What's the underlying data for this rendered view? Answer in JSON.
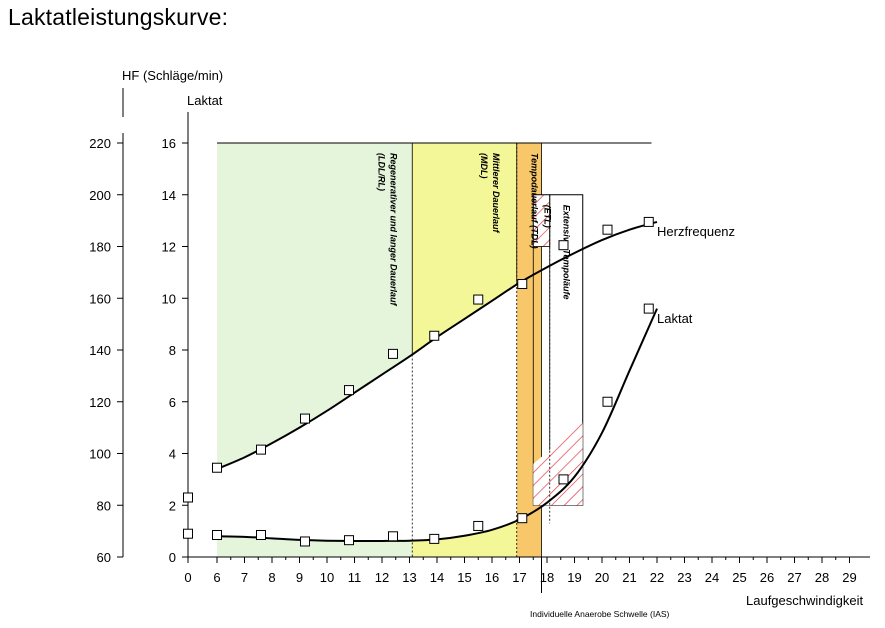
{
  "page_title": "Laktatleistungskurve:",
  "colors": {
    "zone_green": "#e4f5dc",
    "zone_yellow": "#f3f797",
    "zone_orange": "#f7c76a",
    "hatch": "#e0303a",
    "line": "#000000"
  },
  "chart_data": {
    "type": "line",
    "xlabel": "Laufgeschwindigkeit",
    "xlim": [
      0,
      29
    ],
    "x_ticks": [
      "0",
      "6",
      "7",
      "8",
      "9",
      "10",
      "11",
      "12",
      "13",
      "14",
      "15",
      "16",
      "17",
      "18",
      "19",
      "20",
      "21",
      "22",
      "23",
      "24",
      "25",
      "26",
      "27",
      "28",
      "29"
    ],
    "y_left_label": "HF (Schläge/min)",
    "y_left_ticks": [
      "60",
      "80",
      "100",
      "120",
      "140",
      "160",
      "180",
      "200",
      "220"
    ],
    "y_left_lim": [
      60,
      220
    ],
    "y_right_label": "Laktat",
    "y_right_ticks": [
      "0",
      "2",
      "4",
      "6",
      "8",
      "10",
      "12",
      "14",
      "16"
    ],
    "y_right_lim": [
      0,
      16
    ],
    "series": [
      {
        "name": "Herzfrequenz",
        "axis": "left",
        "points": [
          [
            0,
            83
          ],
          [
            6,
            94.5
          ],
          [
            7.6,
            101.5
          ],
          [
            9.2,
            113.5
          ],
          [
            10.8,
            124.5
          ],
          [
            12.4,
            138.5
          ],
          [
            13.9,
            145.5
          ],
          [
            15.5,
            159.5
          ],
          [
            17.1,
            165.5
          ],
          [
            18.6,
            180.5
          ],
          [
            20.2,
            186.5
          ],
          [
            21.7,
            189.5
          ]
        ],
        "curve": [
          [
            6,
            94
          ],
          [
            7,
            98.5
          ],
          [
            8,
            104
          ],
          [
            9,
            110
          ],
          [
            10,
            116.5
          ],
          [
            11,
            123.5
          ],
          [
            12,
            130.5
          ],
          [
            13,
            137.5
          ],
          [
            14,
            145
          ],
          [
            15,
            152
          ],
          [
            16,
            159
          ],
          [
            17,
            166
          ],
          [
            18,
            172
          ],
          [
            19,
            177.5
          ],
          [
            20,
            182.5
          ],
          [
            21,
            186.5
          ],
          [
            22,
            189.5
          ]
        ]
      },
      {
        "name": "Laktat",
        "axis": "right",
        "points": [
          [
            0,
            0.9
          ],
          [
            6,
            0.85
          ],
          [
            7.6,
            0.85
          ],
          [
            9.2,
            0.6
          ],
          [
            10.8,
            0.65
          ],
          [
            12.4,
            0.8
          ],
          [
            13.9,
            0.7
          ],
          [
            15.5,
            1.2
          ],
          [
            17.1,
            1.5
          ],
          [
            18.6,
            3.0
          ],
          [
            20.2,
            6.0
          ],
          [
            21.7,
            9.6
          ]
        ],
        "curve": [
          [
            6,
            0.8
          ],
          [
            7,
            0.78
          ],
          [
            8,
            0.72
          ],
          [
            9,
            0.66
          ],
          [
            10,
            0.63
          ],
          [
            11,
            0.62
          ],
          [
            12,
            0.62
          ],
          [
            13,
            0.63
          ],
          [
            14,
            0.68
          ],
          [
            15,
            0.82
          ],
          [
            16,
            1.05
          ],
          [
            17,
            1.45
          ],
          [
            18,
            2.1
          ],
          [
            19,
            3.1
          ],
          [
            20,
            4.8
          ],
          [
            21,
            7.2
          ],
          [
            22,
            9.6
          ]
        ]
      }
    ],
    "zones": [
      {
        "label": "Regenerativer und langer Dauerlauf (LDL/RL)",
        "x_from": 6,
        "x_to": 13.1,
        "color": "zone_green"
      },
      {
        "label": "Mittlerer Dauerlauf (MDL)",
        "x_from": 13.1,
        "x_to": 16.9,
        "color": "zone_yellow"
      },
      {
        "label": "Tempodauerlauf (TDL)",
        "x_from": 16.9,
        "x_to": 17.8,
        "color": "zone_orange"
      },
      {
        "label": "(ETL)",
        "x_from": 17.5,
        "x_to": 18.1,
        "hatch": true
      },
      {
        "label": "Extensive Tempoläufe",
        "x_from": 18.1,
        "x_to": 19.3,
        "hatch": true
      }
    ],
    "ias_label": "Individuelle Anaerobe Schwelle (IAS)",
    "ias_x": 17.8,
    "hf_label": "Herzfrequenz",
    "laktat_label": "Laktat",
    "grid": false
  }
}
